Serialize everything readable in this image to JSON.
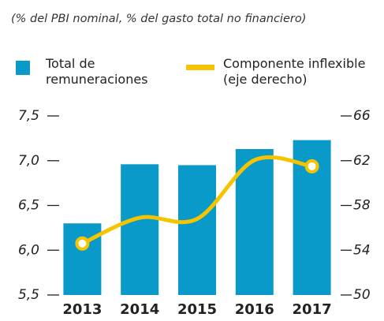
{
  "chart_data": {
    "type": "bar+line",
    "subtitle": "(% del PBI nominal, % del gasto total no financiero)",
    "categories": [
      "2013",
      "2014",
      "2015",
      "2016",
      "2017"
    ],
    "series": [
      {
        "name": "Total de remuneraciones",
        "type": "bar",
        "color": "#0a9ac9",
        "values": [
          6.3,
          6.96,
          6.95,
          7.13,
          7.23
        ]
      },
      {
        "name": "Componente inflexible (eje derecho)",
        "type": "line",
        "axis": "y2",
        "color": "#f5c400",
        "values": [
          54.6,
          56.9,
          56.8,
          62.05,
          61.5
        ]
      }
    ],
    "ylim": [
      5.5,
      7.5
    ],
    "yticks": [
      {
        "value": 5.5,
        "label": "5,5"
      },
      {
        "value": 6.0,
        "label": "6,0"
      },
      {
        "value": 6.5,
        "label": "6,5"
      },
      {
        "value": 7.0,
        "label": "7,0"
      },
      {
        "value": 7.5,
        "label": "7,5"
      }
    ],
    "y2lim": [
      50,
      66
    ],
    "y2ticks": [
      50,
      54,
      58,
      62,
      66
    ]
  }
}
